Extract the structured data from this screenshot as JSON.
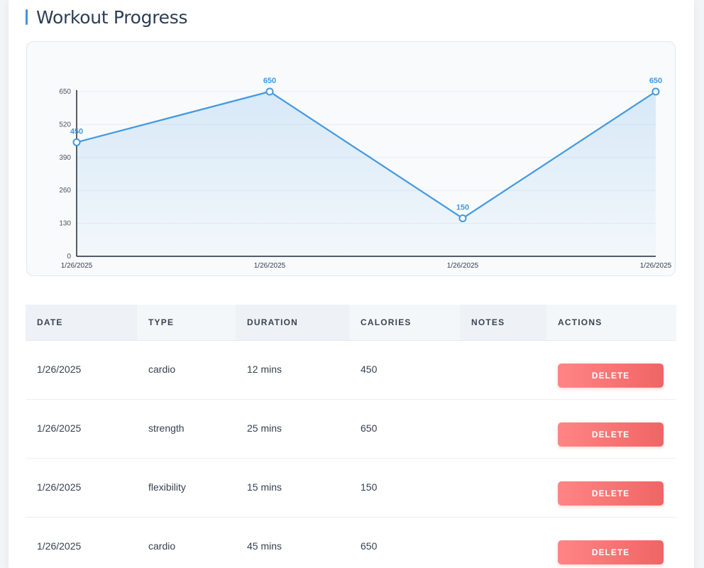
{
  "header": {
    "title": "Workout Progress"
  },
  "table": {
    "columns": [
      "DATE",
      "TYPE",
      "DURATION",
      "CALORIES",
      "NOTES",
      "ACTIONS"
    ],
    "rows": [
      {
        "date": "1/26/2025",
        "type": "cardio",
        "duration": "12 mins",
        "calories": "450",
        "notes": "",
        "action": "DELETE"
      },
      {
        "date": "1/26/2025",
        "type": "strength",
        "duration": "25 mins",
        "calories": "650",
        "notes": "",
        "action": "DELETE"
      },
      {
        "date": "1/26/2025",
        "type": "flexibility",
        "duration": "15 mins",
        "calories": "150",
        "notes": "",
        "action": "DELETE"
      },
      {
        "date": "1/26/2025",
        "type": "cardio",
        "duration": "45 mins",
        "calories": "650",
        "notes": "",
        "action": "DELETE"
      }
    ]
  },
  "chart_data": {
    "type": "line",
    "x": [
      "1/26/2025",
      "1/26/2025",
      "1/26/2025",
      "1/26/2025"
    ],
    "values": [
      450,
      650,
      150,
      650
    ],
    "yticks": [
      0,
      130,
      260,
      390,
      520,
      650
    ],
    "ylim": [
      0,
      650
    ],
    "grid": true,
    "area_fill": true,
    "title": "",
    "xlabel": "",
    "ylabel": ""
  },
  "colors": {
    "accent": "#4a90d9",
    "line": "#4299e1",
    "delete": "#f06565",
    "title": "#2d3e55"
  }
}
